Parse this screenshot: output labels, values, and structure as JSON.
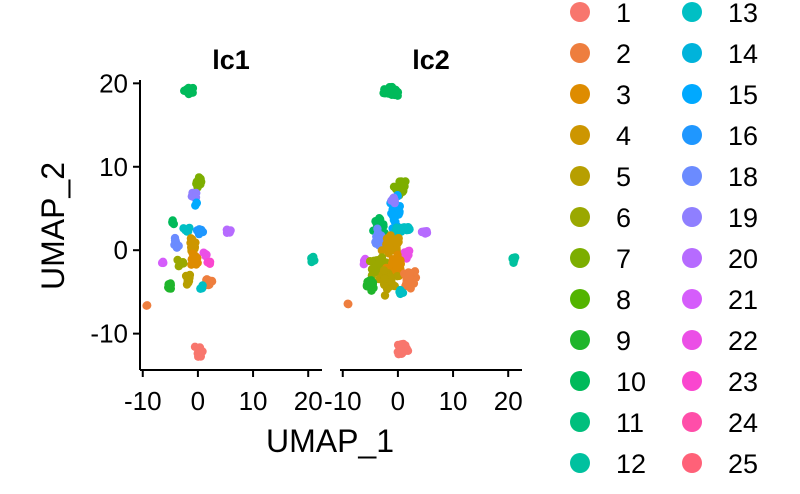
{
  "chart_data": {
    "type": "scatter",
    "xlabel": "UMAP_1",
    "ylabel": "UMAP_2",
    "xlim": [
      -10.5,
      22.5
    ],
    "ylim": [
      -14,
      21
    ],
    "xticks": [
      -10,
      0,
      10,
      20
    ],
    "yticks": [
      -10,
      0,
      10,
      20
    ],
    "xtick_labels": [
      "-10",
      "0",
      "10",
      "20"
    ],
    "ytick_labels": [
      "-10",
      "0",
      "10",
      "20"
    ],
    "grid": false,
    "legend_position": "right",
    "panels": [
      {
        "title": "lc1"
      },
      {
        "title": "lc2"
      }
    ],
    "series": [
      {
        "name": "1",
        "color": "#F8766D"
      },
      {
        "name": "2",
        "color": "#EE7E3E"
      },
      {
        "name": "3",
        "color": "#DE8C00"
      },
      {
        "name": "4",
        "color": "#CD9600"
      },
      {
        "name": "5",
        "color": "#B79F00"
      },
      {
        "name": "6",
        "color": "#9AA800"
      },
      {
        "name": "7",
        "color": "#7CAE00"
      },
      {
        "name": "8",
        "color": "#53B400"
      },
      {
        "name": "9",
        "color": "#1FB52B"
      },
      {
        "name": "10",
        "color": "#00BA5A"
      },
      {
        "name": "11",
        "color": "#00BF7D"
      },
      {
        "name": "12",
        "color": "#00C19F"
      },
      {
        "name": "13",
        "color": "#00BFC4"
      },
      {
        "name": "14",
        "color": "#00B3DB"
      },
      {
        "name": "15",
        "color": "#00A9FF"
      },
      {
        "name": "16",
        "color": "#1F97FF"
      },
      {
        "name": "18",
        "color": "#6B8BFF"
      },
      {
        "name": "19",
        "color": "#8F7FFF"
      },
      {
        "name": "20",
        "color": "#B66BFF"
      },
      {
        "name": "21",
        "color": "#D55DFB"
      },
      {
        "name": "22",
        "color": "#EB4FE6"
      },
      {
        "name": "23",
        "color": "#FA46CF"
      },
      {
        "name": "24",
        "color": "#FF4EA9"
      },
      {
        "name": "25",
        "color": "#FF6178"
      }
    ],
    "clusters": [
      {
        "panel": 0,
        "series": "10",
        "x": -1.5,
        "y": 19.2,
        "sx": 0.8,
        "sy": 0.3,
        "n": 22
      },
      {
        "panel": 0,
        "series": "7",
        "x": 0.3,
        "y": 8.0,
        "sx": 0.5,
        "sy": 0.6,
        "n": 16
      },
      {
        "panel": 0,
        "series": "19",
        "x": -0.7,
        "y": 6.5,
        "sx": 0.4,
        "sy": 0.4,
        "n": 6
      },
      {
        "panel": 0,
        "series": "15",
        "x": -0.2,
        "y": 5.5,
        "sx": 0.3,
        "sy": 0.3,
        "n": 4
      },
      {
        "panel": 0,
        "series": "10",
        "x": -4.5,
        "y": 3.5,
        "sx": 0.3,
        "sy": 0.3,
        "n": 4
      },
      {
        "panel": 0,
        "series": "13",
        "x": -2.0,
        "y": 2.4,
        "sx": 0.5,
        "sy": 0.3,
        "n": 6
      },
      {
        "panel": 0,
        "series": "16",
        "x": 0.2,
        "y": 2.2,
        "sx": 0.8,
        "sy": 0.3,
        "n": 8
      },
      {
        "panel": 0,
        "series": "20",
        "x": 5.5,
        "y": 2.3,
        "sx": 0.4,
        "sy": 0.3,
        "n": 6
      },
      {
        "panel": 0,
        "series": "18",
        "x": -4.0,
        "y": 0.7,
        "sx": 0.4,
        "sy": 0.5,
        "n": 8
      },
      {
        "panel": 0,
        "series": "4",
        "x": -1.0,
        "y": 0.5,
        "sx": 0.6,
        "sy": 0.8,
        "n": 16
      },
      {
        "panel": 0,
        "series": "3",
        "x": -0.5,
        "y": -1.2,
        "sx": 0.6,
        "sy": 0.6,
        "n": 12
      },
      {
        "panel": 0,
        "series": "22",
        "x": 1.5,
        "y": -0.5,
        "sx": 0.5,
        "sy": 0.3,
        "n": 4
      },
      {
        "panel": 0,
        "series": "21",
        "x": -6.5,
        "y": -1.5,
        "sx": 0.2,
        "sy": 0.2,
        "n": 3
      },
      {
        "panel": 0,
        "series": "6",
        "x": -3.0,
        "y": -1.5,
        "sx": 0.5,
        "sy": 0.5,
        "n": 8
      },
      {
        "panel": 0,
        "series": "23",
        "x": 2.0,
        "y": -1.5,
        "sx": 0.3,
        "sy": 0.3,
        "n": 3
      },
      {
        "panel": 0,
        "series": "5",
        "x": -2.0,
        "y": -3.5,
        "sx": 0.6,
        "sy": 0.6,
        "n": 14
      },
      {
        "panel": 0,
        "series": "2",
        "x": 2.0,
        "y": -3.8,
        "sx": 0.8,
        "sy": 0.5,
        "n": 16
      },
      {
        "panel": 0,
        "series": "9",
        "x": -5.0,
        "y": -4.2,
        "sx": 0.3,
        "sy": 0.5,
        "n": 10
      },
      {
        "panel": 0,
        "series": "13",
        "x": 0.5,
        "y": -4.5,
        "sx": 0.4,
        "sy": 0.3,
        "n": 4
      },
      {
        "panel": 0,
        "series": "2",
        "x": -9.3,
        "y": -6.6,
        "sx": 0.1,
        "sy": 0.1,
        "n": 2
      },
      {
        "panel": 0,
        "series": "1",
        "x": 0.3,
        "y": -12.0,
        "sx": 0.4,
        "sy": 0.6,
        "n": 14
      },
      {
        "panel": 0,
        "series": "12",
        "x": 20.8,
        "y": -1.0,
        "sx": 0.3,
        "sy": 0.3,
        "n": 8
      },
      {
        "panel": 1,
        "series": "10",
        "x": -1.5,
        "y": 19.0,
        "sx": 0.9,
        "sy": 0.4,
        "n": 34
      },
      {
        "panel": 1,
        "series": "7",
        "x": 0.5,
        "y": 7.5,
        "sx": 0.7,
        "sy": 0.7,
        "n": 30
      },
      {
        "panel": 1,
        "series": "15",
        "x": -0.5,
        "y": 4.5,
        "sx": 0.8,
        "sy": 1.5,
        "n": 40
      },
      {
        "panel": 1,
        "series": "19",
        "x": -0.8,
        "y": 6.0,
        "sx": 0.4,
        "sy": 0.4,
        "n": 8
      },
      {
        "panel": 1,
        "series": "10",
        "x": -3.5,
        "y": 3.0,
        "sx": 0.8,
        "sy": 0.6,
        "n": 24
      },
      {
        "panel": 1,
        "series": "13",
        "x": 1.0,
        "y": 2.5,
        "sx": 1.5,
        "sy": 0.4,
        "n": 20
      },
      {
        "panel": 1,
        "series": "20",
        "x": 5.0,
        "y": 2.2,
        "sx": 0.5,
        "sy": 0.3,
        "n": 10
      },
      {
        "panel": 1,
        "series": "18",
        "x": -3.5,
        "y": 1.2,
        "sx": 0.8,
        "sy": 0.7,
        "n": 22
      },
      {
        "panel": 1,
        "series": "4",
        "x": -1.0,
        "y": 0.5,
        "sx": 1.2,
        "sy": 1.0,
        "n": 40
      },
      {
        "panel": 1,
        "series": "22",
        "x": 1.5,
        "y": -0.5,
        "sx": 0.6,
        "sy": 0.5,
        "n": 10
      },
      {
        "panel": 1,
        "series": "21",
        "x": -6.0,
        "y": -1.5,
        "sx": 0.4,
        "sy": 0.3,
        "n": 6
      },
      {
        "panel": 1,
        "series": "6",
        "x": -3.5,
        "y": -1.8,
        "sx": 0.9,
        "sy": 0.8,
        "n": 40
      },
      {
        "panel": 1,
        "series": "3",
        "x": -0.5,
        "y": -2.0,
        "sx": 1.2,
        "sy": 1.0,
        "n": 40
      },
      {
        "panel": 1,
        "series": "5",
        "x": -2.0,
        "y": -3.5,
        "sx": 1.0,
        "sy": 0.8,
        "n": 30
      },
      {
        "panel": 1,
        "series": "2",
        "x": 2.0,
        "y": -3.5,
        "sx": 0.9,
        "sy": 0.8,
        "n": 36
      },
      {
        "panel": 1,
        "series": "9",
        "x": -5.0,
        "y": -4.2,
        "sx": 0.5,
        "sy": 0.6,
        "n": 24
      },
      {
        "panel": 1,
        "series": "13",
        "x": 0.5,
        "y": -5.0,
        "sx": 0.4,
        "sy": 0.4,
        "n": 8
      },
      {
        "panel": 1,
        "series": "2",
        "x": -9.0,
        "y": -6.5,
        "sx": 0.15,
        "sy": 0.15,
        "n": 3
      },
      {
        "panel": 1,
        "series": "1",
        "x": 0.8,
        "y": -11.8,
        "sx": 0.8,
        "sy": 0.7,
        "n": 40
      },
      {
        "panel": 1,
        "series": "12",
        "x": 21.0,
        "y": -1.0,
        "sx": 0.3,
        "sy": 0.3,
        "n": 10
      }
    ]
  }
}
